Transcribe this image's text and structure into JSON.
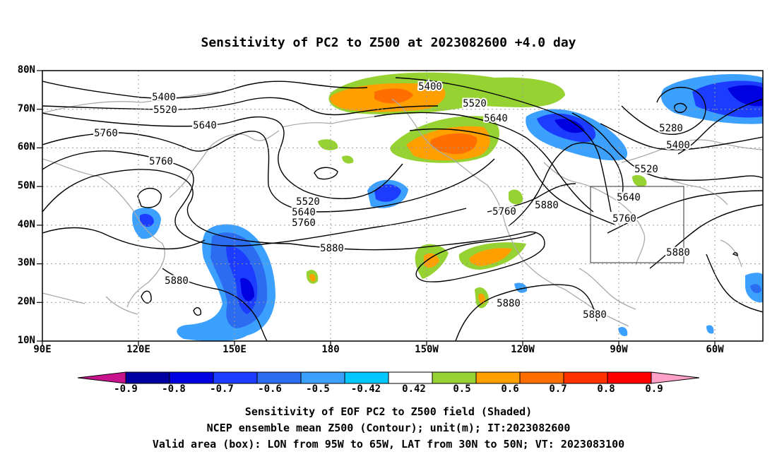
{
  "title": "Sensitivity of PC2 to Z500 at 2023082600 +4.0 day",
  "axes": {
    "lat_ticks": [
      "80N",
      "70N",
      "60N",
      "50N",
      "40N",
      "30N",
      "20N",
      "10N"
    ],
    "lon_ticks": [
      "90E",
      "120E",
      "150E",
      "180",
      "150W",
      "120W",
      "90W",
      "60W"
    ]
  },
  "contour_labels": [
    "5400",
    "5520",
    "5640",
    "5760",
    "5760",
    "5400",
    "5520",
    "5640",
    "5760",
    "5520",
    "5640",
    "5760",
    "5880",
    "5760",
    "5880",
    "5880",
    "5880",
    "5880",
    "5280",
    "5400",
    "5520",
    "5640",
    "5760",
    "5880"
  ],
  "colorbar": {
    "labels": [
      "-0.9",
      "-0.8",
      "-0.7",
      "-0.6",
      "-0.5",
      "-0.42",
      "0.42",
      "0.5",
      "0.6",
      "0.7",
      "0.8",
      "0.9"
    ],
    "colors": [
      "#0000a0",
      "#0000e0",
      "#1c3cff",
      "#2c6cf0",
      "#3ca0ff",
      "#00c8ff",
      "#ffffff",
      "#96d232",
      "#ffa000",
      "#ff6e00",
      "#ff3200",
      "#ff0000"
    ],
    "low_end_color": "#c8148c",
    "high_end_color": "#ffa0c8"
  },
  "valid_box": {
    "lon_west": "95W",
    "lon_east": "65W",
    "lat_south": "30N",
    "lat_north": "50N"
  },
  "captions": [
    "Sensitivity of EOF PC2 to Z500 field (Shaded)",
    "NCEP ensemble mean Z500 (Contour); unit(m); IT:2023082600",
    "Valid area (box): LON from 95W to 65W, LAT from 30N to 50N; VT: 2023083100"
  ]
}
